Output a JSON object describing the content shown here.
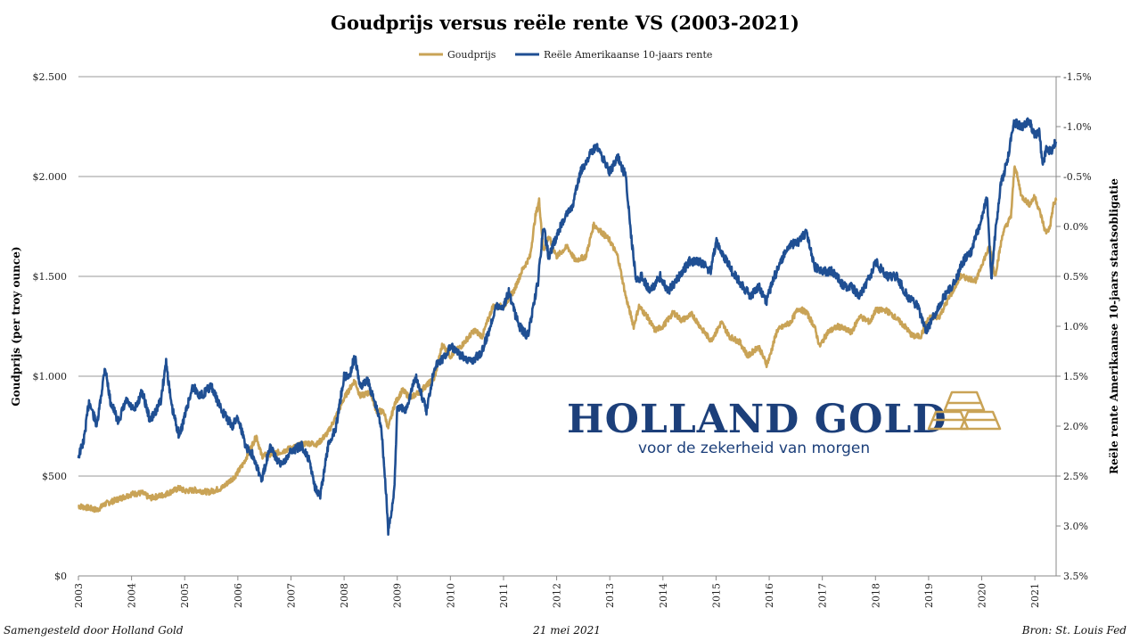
{
  "chart_data": {
    "type": "line",
    "title": "Goudprijs versus reële rente VS (2003-2021)",
    "legend": [
      "Goudprijs",
      "Reële Amerikaanse 10-jaars rente"
    ],
    "legend_position": "top-center",
    "ylabel_left": "Goudprijs  (per troy ounce)",
    "ylabel_right": "Reële rente Amerikaanse 10-jaars staatsobligatie",
    "ylim_left": [
      0,
      2500
    ],
    "ylim_right": [
      3.5,
      -1.5
    ],
    "right_axis_inverted": true,
    "x_range": [
      2003,
      2021.4
    ],
    "x_tick_labels": [
      "2003",
      "2004",
      "2005",
      "2006",
      "2007",
      "2008",
      "2009",
      "2010",
      "2011",
      "2012",
      "2013",
      "2014",
      "2015",
      "2016",
      "2017",
      "2018",
      "2019",
      "2020",
      "2021"
    ],
    "y_left_tick_labels": [
      "$0",
      "$500",
      "$1.000",
      "$1.500",
      "$2.000",
      "$2.500"
    ],
    "y_left_tick_values": [
      0,
      500,
      1000,
      1500,
      2000,
      2500
    ],
    "y_right_tick_labels": [
      "3.5%",
      "3.0%",
      "2.5%",
      "2.0%",
      "1.5%",
      "1.0%",
      "0.5%",
      "0.0%",
      "-0.5%",
      "-1.0%",
      "-1.5%"
    ],
    "y_right_tick_values": [
      3.5,
      3.0,
      2.5,
      2.0,
      1.5,
      1.0,
      0.5,
      0.0,
      -0.5,
      -1.0,
      -1.5
    ],
    "series": [
      {
        "name": "Goudprijs",
        "axis": "left",
        "color": "#c9a356",
        "points": [
          [
            2003.0,
            350
          ],
          [
            2003.2,
            340
          ],
          [
            2003.35,
            330
          ],
          [
            2003.5,
            360
          ],
          [
            2003.75,
            385
          ],
          [
            2004.0,
            410
          ],
          [
            2004.2,
            415
          ],
          [
            2004.35,
            390
          ],
          [
            2004.6,
            405
          ],
          [
            2004.9,
            440
          ],
          [
            2005.0,
            425
          ],
          [
            2005.2,
            430
          ],
          [
            2005.45,
            420
          ],
          [
            2005.7,
            440
          ],
          [
            2005.95,
            500
          ],
          [
            2006.1,
            560
          ],
          [
            2006.35,
            700
          ],
          [
            2006.45,
            600
          ],
          [
            2006.6,
            610
          ],
          [
            2006.8,
            620
          ],
          [
            2007.0,
            640
          ],
          [
            2007.3,
            665
          ],
          [
            2007.5,
            660
          ],
          [
            2007.7,
            720
          ],
          [
            2007.85,
            800
          ],
          [
            2008.0,
            890
          ],
          [
            2008.2,
            980
          ],
          [
            2008.3,
            900
          ],
          [
            2008.5,
            920
          ],
          [
            2008.6,
            830
          ],
          [
            2008.75,
            820
          ],
          [
            2008.83,
            740
          ],
          [
            2008.95,
            860
          ],
          [
            2009.1,
            930
          ],
          [
            2009.25,
            890
          ],
          [
            2009.45,
            930
          ],
          [
            2009.7,
            990
          ],
          [
            2009.85,
            1160
          ],
          [
            2010.0,
            1100
          ],
          [
            2010.2,
            1150
          ],
          [
            2010.45,
            1230
          ],
          [
            2010.6,
            1200
          ],
          [
            2010.8,
            1350
          ],
          [
            2011.0,
            1350
          ],
          [
            2011.2,
            1430
          ],
          [
            2011.35,
            1530
          ],
          [
            2011.5,
            1600
          ],
          [
            2011.6,
            1800
          ],
          [
            2011.67,
            1880
          ],
          [
            2011.75,
            1630
          ],
          [
            2011.85,
            1700
          ],
          [
            2012.0,
            1600
          ],
          [
            2012.2,
            1650
          ],
          [
            2012.35,
            1580
          ],
          [
            2012.55,
            1600
          ],
          [
            2012.7,
            1760
          ],
          [
            2012.85,
            1720
          ],
          [
            2013.0,
            1680
          ],
          [
            2013.15,
            1600
          ],
          [
            2013.3,
            1400
          ],
          [
            2013.45,
            1250
          ],
          [
            2013.55,
            1350
          ],
          [
            2013.7,
            1300
          ],
          [
            2013.85,
            1230
          ],
          [
            2014.0,
            1250
          ],
          [
            2014.2,
            1320
          ],
          [
            2014.35,
            1280
          ],
          [
            2014.55,
            1310
          ],
          [
            2014.75,
            1230
          ],
          [
            2014.9,
            1180
          ],
          [
            2015.0,
            1220
          ],
          [
            2015.1,
            1270
          ],
          [
            2015.25,
            1200
          ],
          [
            2015.45,
            1170
          ],
          [
            2015.6,
            1100
          ],
          [
            2015.8,
            1150
          ],
          [
            2015.95,
            1060
          ],
          [
            2016.0,
            1090
          ],
          [
            2016.15,
            1230
          ],
          [
            2016.4,
            1270
          ],
          [
            2016.55,
            1340
          ],
          [
            2016.7,
            1320
          ],
          [
            2016.85,
            1250
          ],
          [
            2016.95,
            1150
          ],
          [
            2017.1,
            1220
          ],
          [
            2017.3,
            1250
          ],
          [
            2017.55,
            1220
          ],
          [
            2017.7,
            1300
          ],
          [
            2017.9,
            1270
          ],
          [
            2018.0,
            1330
          ],
          [
            2018.2,
            1330
          ],
          [
            2018.35,
            1300
          ],
          [
            2018.55,
            1250
          ],
          [
            2018.7,
            1200
          ],
          [
            2018.85,
            1200
          ],
          [
            2019.0,
            1290
          ],
          [
            2019.2,
            1300
          ],
          [
            2019.4,
            1400
          ],
          [
            2019.6,
            1500
          ],
          [
            2019.75,
            1490
          ],
          [
            2019.9,
            1480
          ],
          [
            2020.0,
            1560
          ],
          [
            2020.15,
            1650
          ],
          [
            2020.25,
            1500
          ],
          [
            2020.4,
            1720
          ],
          [
            2020.55,
            1800
          ],
          [
            2020.62,
            2060
          ],
          [
            2020.75,
            1900
          ],
          [
            2020.9,
            1860
          ],
          [
            2021.0,
            1900
          ],
          [
            2021.12,
            1800
          ],
          [
            2021.2,
            1720
          ],
          [
            2021.28,
            1740
          ],
          [
            2021.35,
            1860
          ],
          [
            2021.4,
            1880
          ]
        ]
      },
      {
        "name": "Reële Amerikaanse 10-jaars rente",
        "axis": "right",
        "color": "#1f4f93",
        "points": [
          [
            2003.0,
            2.3
          ],
          [
            2003.1,
            2.15
          ],
          [
            2003.2,
            1.75
          ],
          [
            2003.35,
            2.0
          ],
          [
            2003.5,
            1.4
          ],
          [
            2003.6,
            1.75
          ],
          [
            2003.75,
            1.95
          ],
          [
            2003.9,
            1.75
          ],
          [
            2004.05,
            1.85
          ],
          [
            2004.2,
            1.65
          ],
          [
            2004.35,
            1.95
          ],
          [
            2004.55,
            1.75
          ],
          [
            2004.65,
            1.35
          ],
          [
            2004.75,
            1.8
          ],
          [
            2004.9,
            2.1
          ],
          [
            2005.0,
            1.9
          ],
          [
            2005.15,
            1.6
          ],
          [
            2005.3,
            1.7
          ],
          [
            2005.5,
            1.6
          ],
          [
            2005.7,
            1.85
          ],
          [
            2005.9,
            2.0
          ],
          [
            2006.0,
            1.9
          ],
          [
            2006.15,
            2.2
          ],
          [
            2006.3,
            2.3
          ],
          [
            2006.45,
            2.55
          ],
          [
            2006.6,
            2.2
          ],
          [
            2006.8,
            2.4
          ],
          [
            2007.0,
            2.25
          ],
          [
            2007.2,
            2.2
          ],
          [
            2007.35,
            2.35
          ],
          [
            2007.45,
            2.6
          ],
          [
            2007.55,
            2.7
          ],
          [
            2007.7,
            2.2
          ],
          [
            2007.85,
            2.0
          ],
          [
            2008.0,
            1.5
          ],
          [
            2008.1,
            1.5
          ],
          [
            2008.2,
            1.3
          ],
          [
            2008.3,
            1.6
          ],
          [
            2008.45,
            1.55
          ],
          [
            2008.6,
            1.8
          ],
          [
            2008.7,
            2.0
          ],
          [
            2008.78,
            2.6
          ],
          [
            2008.83,
            3.05
          ],
          [
            2008.88,
            2.9
          ],
          [
            2008.95,
            2.6
          ],
          [
            2009.0,
            1.8
          ],
          [
            2009.15,
            1.85
          ],
          [
            2009.35,
            1.5
          ],
          [
            2009.55,
            1.85
          ],
          [
            2009.7,
            1.4
          ],
          [
            2009.9,
            1.3
          ],
          [
            2010.0,
            1.2
          ],
          [
            2010.2,
            1.3
          ],
          [
            2010.4,
            1.35
          ],
          [
            2010.6,
            1.25
          ],
          [
            2010.75,
            1.0
          ],
          [
            2010.85,
            0.8
          ],
          [
            2011.0,
            0.8
          ],
          [
            2011.1,
            0.65
          ],
          [
            2011.2,
            0.85
          ],
          [
            2011.3,
            1.0
          ],
          [
            2011.45,
            1.1
          ],
          [
            2011.55,
            0.85
          ],
          [
            2011.65,
            0.55
          ],
          [
            2011.75,
            0.0
          ],
          [
            2011.85,
            0.3
          ],
          [
            2012.0,
            0.1
          ],
          [
            2012.15,
            -0.1
          ],
          [
            2012.3,
            -0.2
          ],
          [
            2012.45,
            -0.55
          ],
          [
            2012.6,
            -0.7
          ],
          [
            2012.75,
            -0.8
          ],
          [
            2012.85,
            -0.7
          ],
          [
            2013.0,
            -0.55
          ],
          [
            2013.15,
            -0.7
          ],
          [
            2013.3,
            -0.5
          ],
          [
            2013.4,
            0.1
          ],
          [
            2013.5,
            0.55
          ],
          [
            2013.6,
            0.5
          ],
          [
            2013.75,
            0.65
          ],
          [
            2013.95,
            0.5
          ],
          [
            2014.1,
            0.65
          ],
          [
            2014.3,
            0.5
          ],
          [
            2014.5,
            0.35
          ],
          [
            2014.7,
            0.35
          ],
          [
            2014.9,
            0.45
          ],
          [
            2015.0,
            0.15
          ],
          [
            2015.1,
            0.25
          ],
          [
            2015.3,
            0.45
          ],
          [
            2015.5,
            0.6
          ],
          [
            2015.65,
            0.7
          ],
          [
            2015.8,
            0.6
          ],
          [
            2015.95,
            0.75
          ],
          [
            2016.1,
            0.5
          ],
          [
            2016.35,
            0.2
          ],
          [
            2016.55,
            0.15
          ],
          [
            2016.7,
            0.05
          ],
          [
            2016.85,
            0.4
          ],
          [
            2017.0,
            0.45
          ],
          [
            2017.2,
            0.45
          ],
          [
            2017.4,
            0.6
          ],
          [
            2017.55,
            0.6
          ],
          [
            2017.7,
            0.7
          ],
          [
            2017.9,
            0.5
          ],
          [
            2018.0,
            0.35
          ],
          [
            2018.2,
            0.5
          ],
          [
            2018.4,
            0.5
          ],
          [
            2018.6,
            0.7
          ],
          [
            2018.8,
            0.8
          ],
          [
            2018.95,
            1.05
          ],
          [
            2019.1,
            0.9
          ],
          [
            2019.3,
            0.7
          ],
          [
            2019.5,
            0.55
          ],
          [
            2019.65,
            0.35
          ],
          [
            2019.8,
            0.25
          ],
          [
            2019.95,
            0.0
          ],
          [
            2020.1,
            -0.3
          ],
          [
            2020.18,
            0.55
          ],
          [
            2020.25,
            0.1
          ],
          [
            2020.35,
            -0.4
          ],
          [
            2020.5,
            -0.7
          ],
          [
            2020.6,
            -1.05
          ],
          [
            2020.75,
            -1.0
          ],
          [
            2020.9,
            -1.05
          ],
          [
            2021.0,
            -0.9
          ],
          [
            2021.08,
            -0.95
          ],
          [
            2021.15,
            -0.6
          ],
          [
            2021.22,
            -0.8
          ],
          [
            2021.3,
            -0.75
          ],
          [
            2021.4,
            -0.85
          ]
        ]
      }
    ]
  },
  "logo": {
    "name": "HOLLAND GOLD",
    "tagline": "voor de zekerheid van morgen"
  },
  "footer": {
    "left": "Samengesteld door Holland Gold",
    "center": "21 mei 2021",
    "right": "Bron: St. Louis Fed"
  }
}
